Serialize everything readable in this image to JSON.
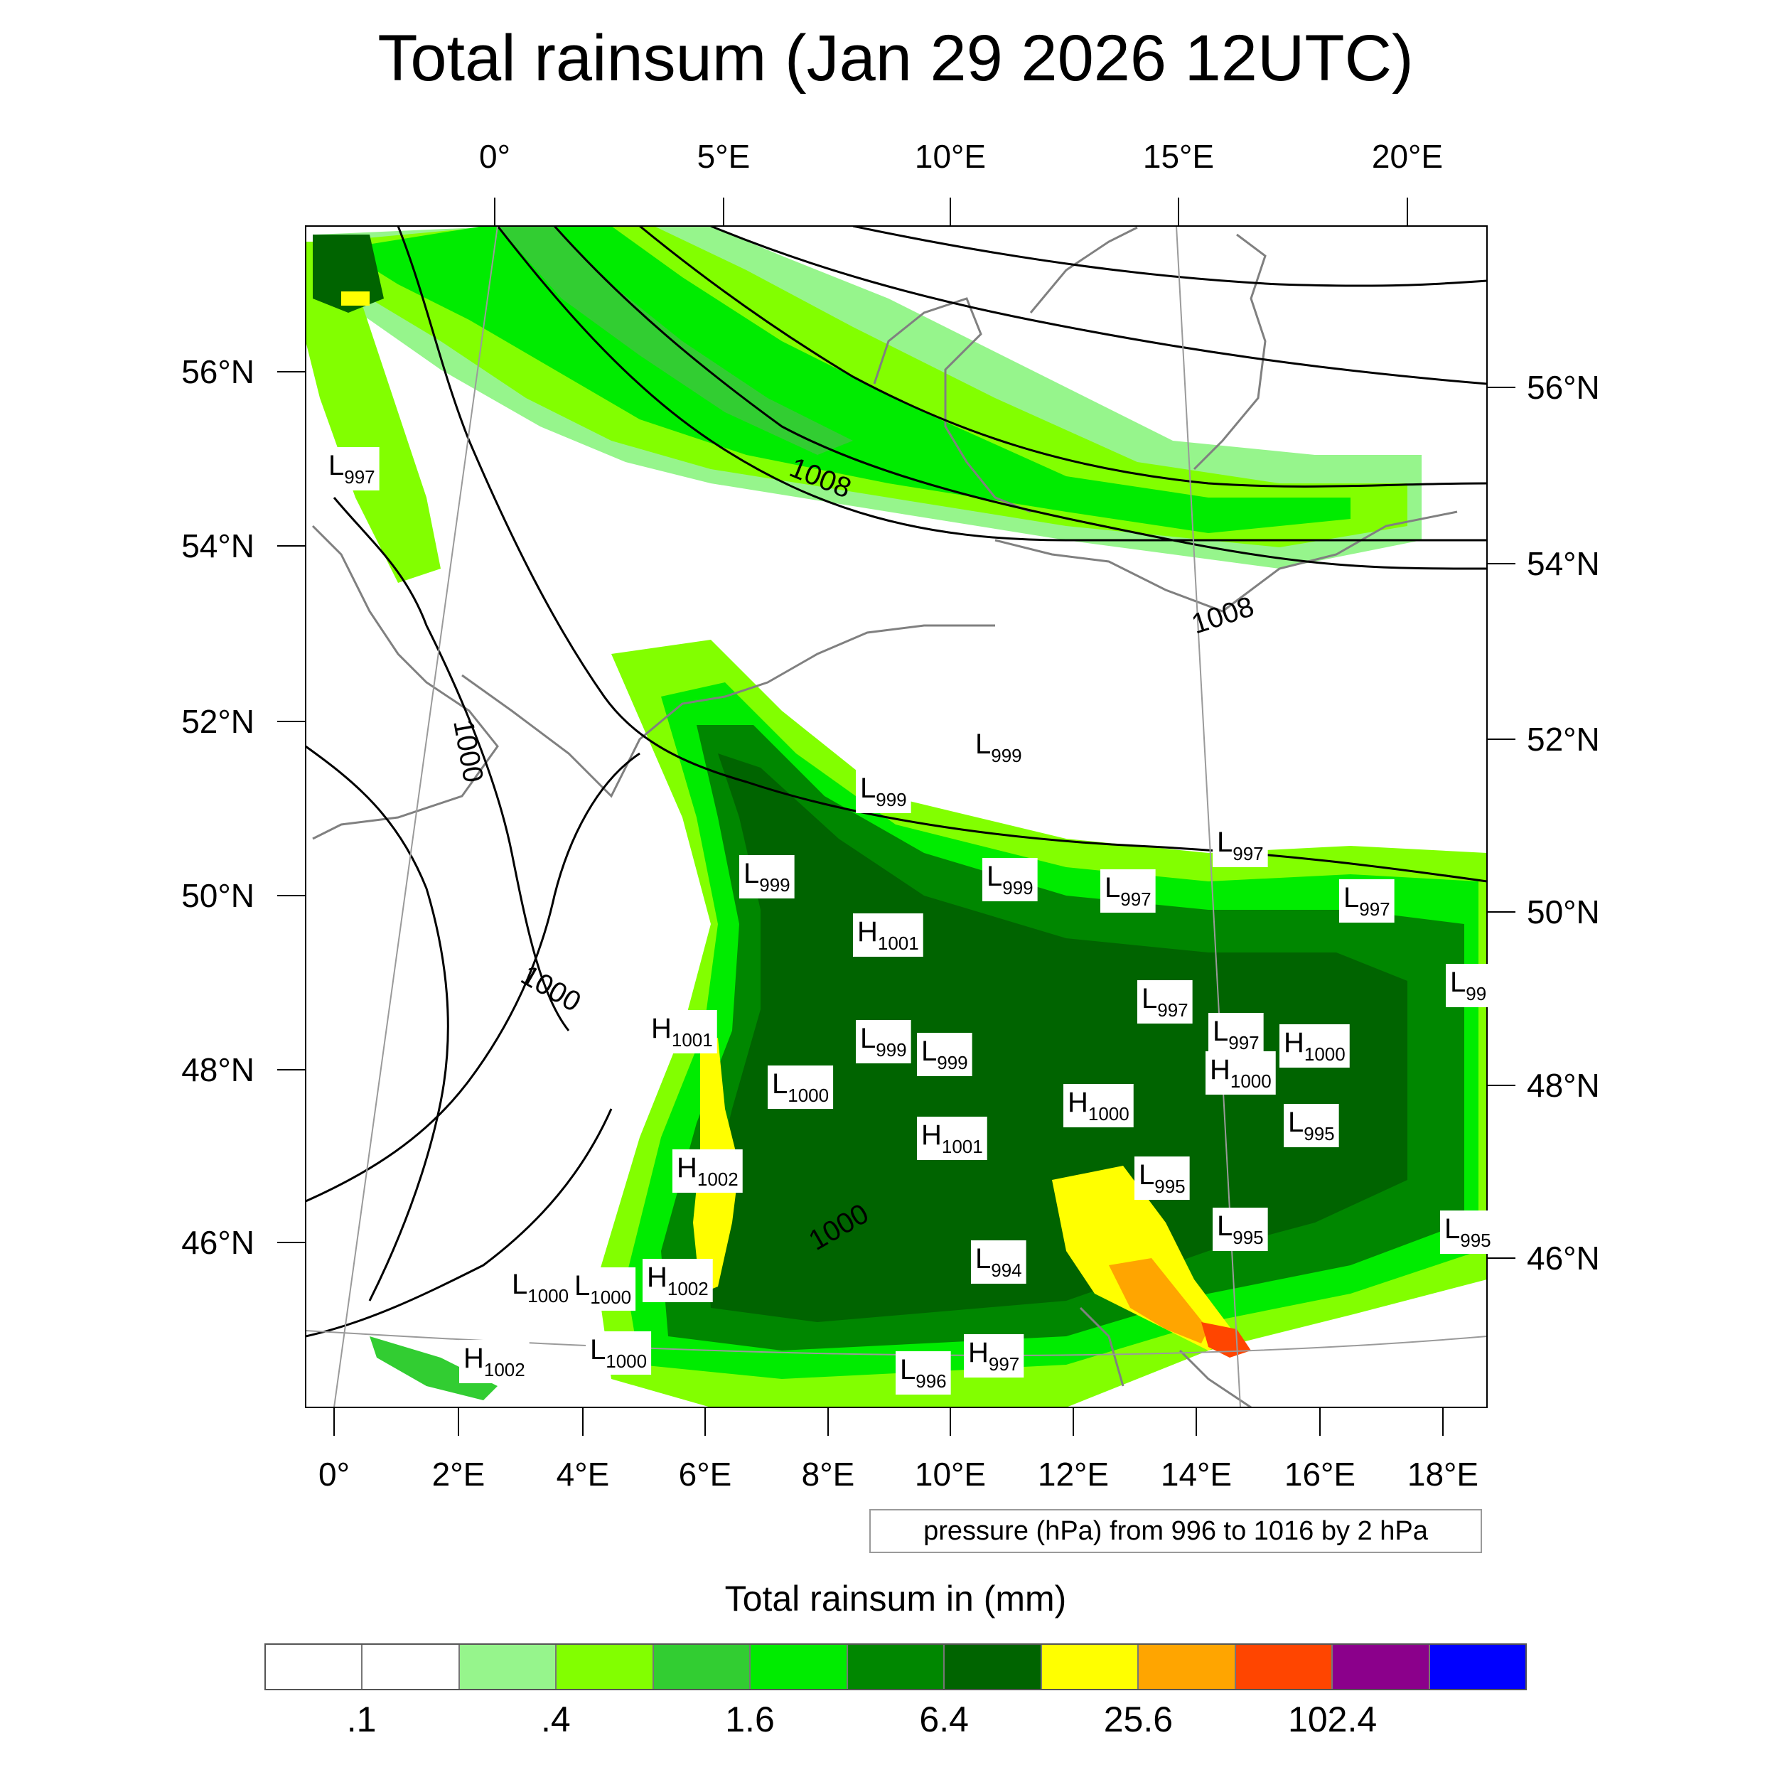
{
  "title": "Total rainsum (Jan 29 2026 12UTC)",
  "map": {
    "top_lon_labels": [
      "0°",
      "5°E",
      "10°E",
      "15°E",
      "20°E"
    ],
    "bottom_lon_labels": [
      "0°",
      "2°E",
      "4°E",
      "6°E",
      "8°E",
      "10°E",
      "12°E",
      "14°E",
      "16°E",
      "18°E"
    ],
    "left_lat_labels": [
      "56°N",
      "54°N",
      "52°N",
      "50°N",
      "48°N",
      "46°N"
    ],
    "right_lat_labels": [
      "56°N",
      "54°N",
      "52°N",
      "50°N",
      "48°N",
      "46°N"
    ],
    "isobar_labels": [
      "1008",
      "1008",
      "1000",
      "1000",
      "1000"
    ],
    "pressure_systems": [
      {
        "type": "L",
        "value": "997"
      },
      {
        "type": "L",
        "value": "999"
      },
      {
        "type": "L",
        "value": "999"
      },
      {
        "type": "L",
        "value": "999"
      },
      {
        "type": "L",
        "value": "999"
      },
      {
        "type": "L",
        "value": "997"
      },
      {
        "type": "L",
        "value": "997"
      },
      {
        "type": "L",
        "value": "997"
      },
      {
        "type": "H",
        "value": "1001"
      },
      {
        "type": "L",
        "value": "99"
      },
      {
        "type": "L",
        "value": "997"
      },
      {
        "type": "H",
        "value": "1001"
      },
      {
        "type": "L",
        "value": "999"
      },
      {
        "type": "L",
        "value": "999"
      },
      {
        "type": "L",
        "value": "997"
      },
      {
        "type": "H",
        "value": "1000"
      },
      {
        "type": "H",
        "value": "1000"
      },
      {
        "type": "L",
        "value": "1000"
      },
      {
        "type": "H",
        "value": "1000"
      },
      {
        "type": "H",
        "value": "1001"
      },
      {
        "type": "L",
        "value": "995"
      },
      {
        "type": "H",
        "value": "1002"
      },
      {
        "type": "L",
        "value": "995"
      },
      {
        "type": "L",
        "value": "995"
      },
      {
        "type": "L",
        "value": "995"
      },
      {
        "type": "L",
        "value": "994"
      },
      {
        "type": "L",
        "value": "1000"
      },
      {
        "type": "L",
        "value": "1000"
      },
      {
        "type": "H",
        "value": "1002"
      },
      {
        "type": "H",
        "value": "1002"
      },
      {
        "type": "L",
        "value": "1000"
      },
      {
        "type": "L",
        "value": "996"
      },
      {
        "type": "H",
        "value": "997"
      }
    ]
  },
  "pressure_note": "pressure (hPa) from 996 to 1016 by 2 hPa",
  "legend": {
    "title": "Total rainsum in (mm)",
    "colors": [
      "#ffffff",
      "#ffffff",
      "#96f58c",
      "#82ff00",
      "#32cd32",
      "#00ec00",
      "#008700",
      "#006400",
      "#ffff00",
      "#ffa500",
      "#ff4500",
      "#8b008b",
      "#0000ff"
    ],
    "tick_labels": [
      ".1",
      ".4",
      "1.6",
      "6.4",
      "25.6",
      "102.4"
    ]
  }
}
